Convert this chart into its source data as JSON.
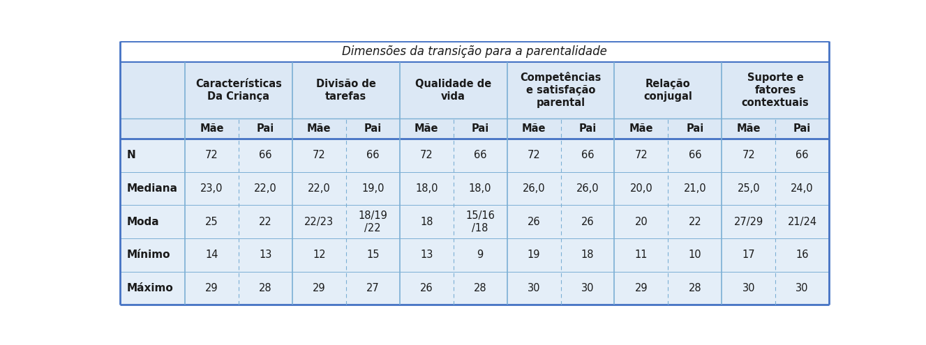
{
  "title": "Dimensões da transição para a parentalidade",
  "header_groups": [
    {
      "label": "Características\nDa Criança"
    },
    {
      "label": "Divisão de\ntarefas"
    },
    {
      "label": "Qualidade de\nvida"
    },
    {
      "label": "Competências\ne satisfação\nparental"
    },
    {
      "label": "Relação\nconjugal"
    },
    {
      "label": "Suporte e\nfatores\ncontextuais"
    }
  ],
  "subheader": [
    "Mãe",
    "Pai",
    "Mãe",
    "Pai",
    "Mãe",
    "Pai",
    "Mãe",
    "Pai",
    "Mãe",
    "Pai",
    "Mãe",
    "Pai"
  ],
  "row_labels": [
    "N",
    "Mediana",
    "Moda",
    "Mínimo",
    "Máximo"
  ],
  "rows": [
    [
      "72",
      "66",
      "72",
      "66",
      "72",
      "66",
      "72",
      "66",
      "72",
      "66",
      "72",
      "66"
    ],
    [
      "23,0",
      "22,0",
      "22,0",
      "19,0",
      "18,0",
      "18,0",
      "26,0",
      "26,0",
      "20,0",
      "21,0",
      "25,0",
      "24,0"
    ],
    [
      "25",
      "22",
      "22/23",
      "18/19\n/22",
      "18",
      "15/16\n/18",
      "26",
      "26",
      "20",
      "22",
      "27/29",
      "21/24"
    ],
    [
      "14",
      "13",
      "12",
      "15",
      "13",
      "9",
      "19",
      "18",
      "11",
      "10",
      "17",
      "16"
    ],
    [
      "29",
      "28",
      "29",
      "27",
      "26",
      "28",
      "30",
      "30",
      "29",
      "28",
      "30",
      "30"
    ]
  ],
  "bg_header": "#dce8f5",
  "bg_data": "#e4eef8",
  "bg_row_label": "#e4eef8",
  "bg_title": "#ffffff",
  "border_color_outer": "#4472c4",
  "border_color_inner": "#7bafd4",
  "border_color_dashed": "#7bafd4",
  "text_color": "#1a1a1a",
  "title_color": "#1a1a1a",
  "font_size": 10.5,
  "title_font_size": 12,
  "row_label_font_size": 11
}
